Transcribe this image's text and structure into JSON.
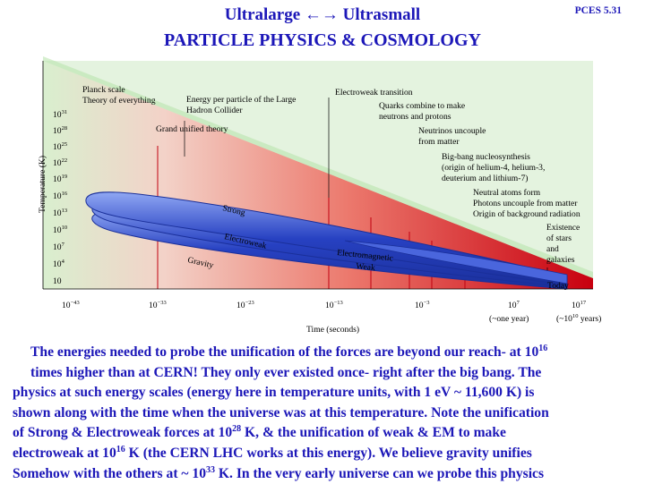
{
  "header": {
    "title_part1": "Ultralarge",
    "title_arrows": "←→",
    "title_part2": "Ultrasmall",
    "subtitle": "PARTICLE PHYSICS  &  COSMOLOGY",
    "slide_id": "PCES  5.31"
  },
  "figure": {
    "colors": {
      "plot_bg": "#e4f3df",
      "gradient_start": "#d9efcf",
      "gradient_end": "#c8000f",
      "band": "#2741c2",
      "band_light": "#8fa7f3"
    },
    "y_axis_title": "Temperature (K)",
    "y_ticks": [
      {
        "base": "10",
        "exp": "31"
      },
      {
        "base": "10",
        "exp": "28"
      },
      {
        "base": "10",
        "exp": "25"
      },
      {
        "base": "10",
        "exp": "22"
      },
      {
        "base": "10",
        "exp": "19"
      },
      {
        "base": "10",
        "exp": "16"
      },
      {
        "base": "10",
        "exp": "13"
      },
      {
        "base": "10",
        "exp": "10"
      },
      {
        "base": "10",
        "exp": "7"
      },
      {
        "base": "10",
        "exp": "4"
      },
      {
        "base": "10",
        "exp": ""
      }
    ],
    "x_axis_title": "Time (seconds)",
    "x_ticks": [
      {
        "base": "10",
        "exp": "−43"
      },
      {
        "base": "10",
        "exp": "−33"
      },
      {
        "base": "10",
        "exp": "−23"
      },
      {
        "base": "10",
        "exp": "−13"
      },
      {
        "base": "10",
        "exp": "−3"
      },
      {
        "base": "10",
        "exp": "7"
      },
      {
        "base": "10",
        "exp": "17"
      }
    ],
    "x_notes": {
      "one_year": "(~one year)",
      "now_prefix": "(~10",
      "now_exp": "10",
      "now_suffix": " years)"
    },
    "events": {
      "planck_1": "Planck scale",
      "planck_2": "Theory of everything",
      "lhc_1": "Energy per particle of the Large",
      "lhc_2": "Hadron Collider",
      "gut": "Grand unified theory",
      "ew_transition": "Electroweak transition",
      "quarks_1": "Quarks combine to make",
      "quarks_2": "neutrons and protons",
      "neutrinos_1": "Neutrinos uncouple",
      "neutrinos_2": "from matter",
      "bbn_1": "Big-bang nucleosynthesis",
      "bbn_2": "(origin of helium-4, helium-3,",
      "bbn_3": "deuterium and lithium-7)",
      "neutral_1": "Neutral atoms form",
      "neutral_2": "Photons uncouple from matter",
      "neutral_3": "Origin of background radiation",
      "stars_1": "Existence",
      "stars_2": "of stars",
      "stars_3": "and",
      "stars_4": "galaxies",
      "today": "Today"
    },
    "forces": {
      "strong": "Strong",
      "electroweak": "Electroweak",
      "electromagnetic": "Electromagnetic",
      "weak": "Weak",
      "gravity": "Gravity"
    }
  },
  "caption": {
    "l1_a": "The energies needed to probe the unification of the forces are beyond our reach- at 10",
    "l1_sup": "16",
    "l2": "times higher than at CERN! They  only ever existed once- right after the big bang. The",
    "l3": "physics at such energy scales (energy here in temperature units, with 1 eV ~ 11,600 K) is",
    "l4": "shown along with the time when the universe was at this temperature. Note the unification",
    "l5_a": "of Strong & Electroweak forces at 10",
    "l5_sup": "28",
    "l5_b": " K, & the unification of weak & EM to make",
    "l6_a": "electroweak at 10",
    "l6_sup": "16",
    "l6_b": " K (the CERN LHC works at this energy). We believe gravity unifies",
    "l7_a": "Somehow with the others at ~ 10",
    "l7_sup": "33",
    "l7_b": " K.  In the very early universe can we probe this physics"
  }
}
